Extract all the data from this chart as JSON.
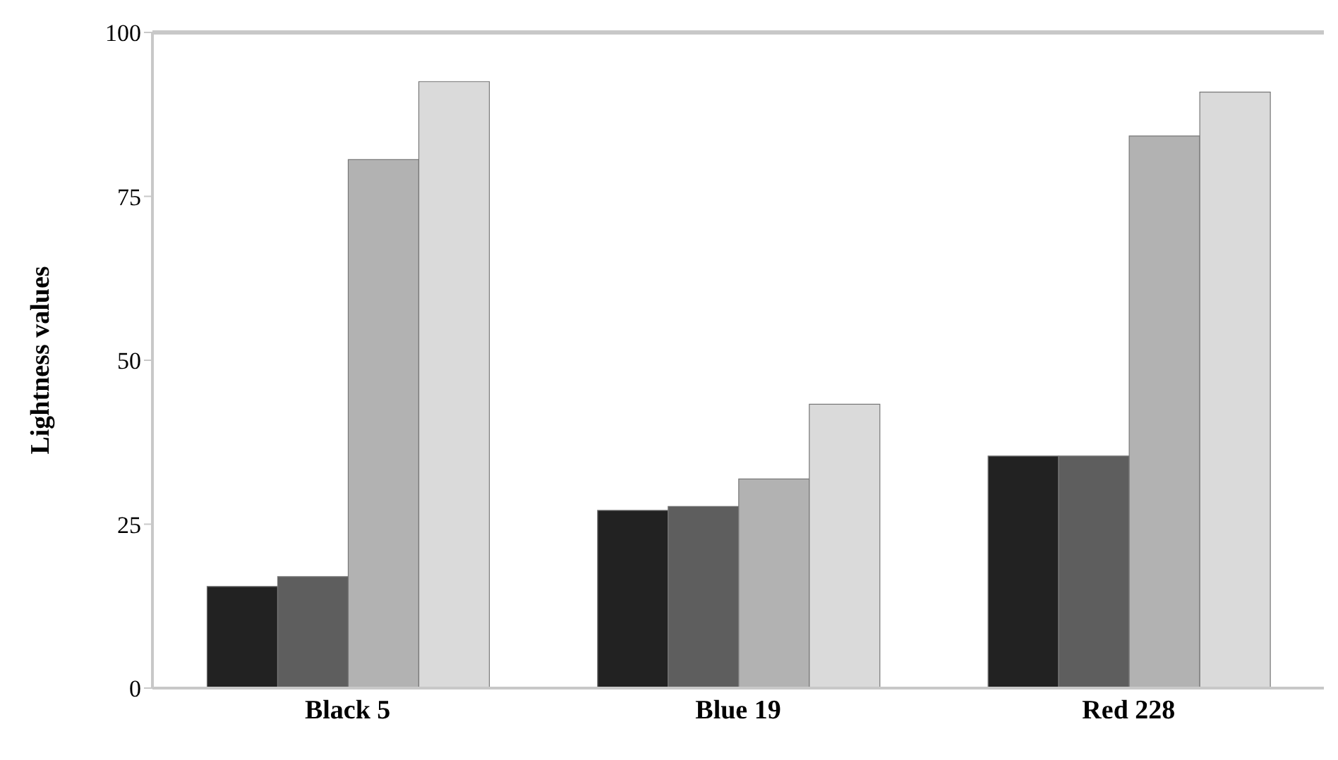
{
  "chart_data": {
    "type": "bar",
    "ylabel": "Lightness values",
    "categories": [
      "Black 5",
      "Blue 19",
      "Red 228"
    ],
    "series": [
      {
        "color": "#222222",
        "values": [
          15.5,
          27.1,
          35.4
        ]
      },
      {
        "color": "#5e5e5e",
        "values": [
          17.0,
          27.7,
          35.4
        ]
      },
      {
        "color": "#b2b2b2",
        "values": [
          80.6,
          31.9,
          84.2
        ]
      },
      {
        "color": "#dadada",
        "values": [
          92.5,
          43.3,
          90.9
        ]
      }
    ],
    "ylim": [
      0,
      100
    ],
    "yticks": [
      0,
      25,
      50,
      75,
      100
    ],
    "legend": false
  }
}
